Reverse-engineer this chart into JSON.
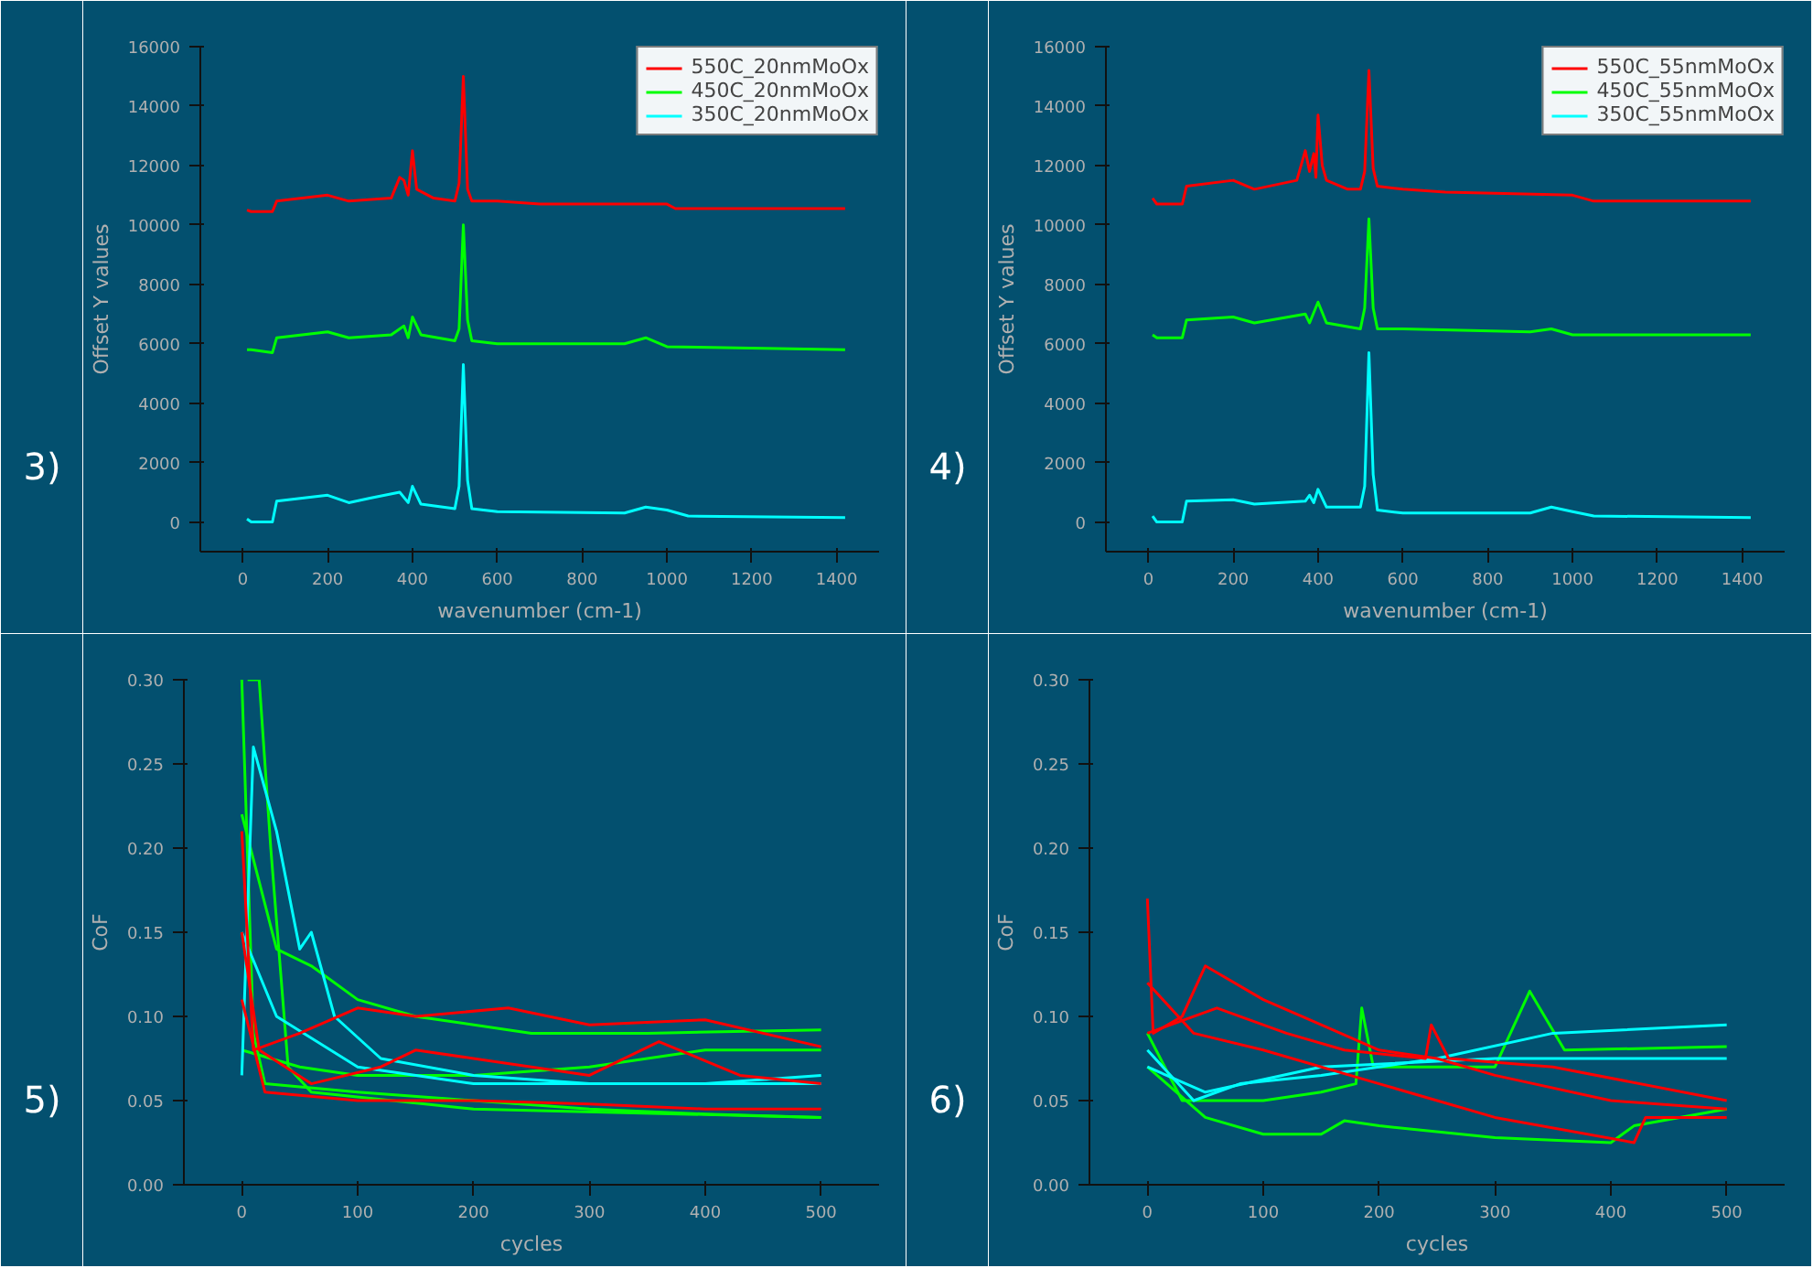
{
  "chart_data": [
    {
      "type": "line",
      "xlabel": "wavenumber (cm-1)",
      "ylabel": "Offset Y values",
      "annotations": [
        "3)"
      ],
      "xlim": [
        -100,
        1500
      ],
      "ylim": [
        -1000,
        16000
      ],
      "xticks": [
        0,
        200,
        400,
        600,
        800,
        1000,
        1200,
        1400
      ],
      "yticks": [
        0,
        2000,
        4000,
        6000,
        8000,
        10000,
        12000,
        14000,
        16000
      ],
      "grid": false,
      "legend": "top right",
      "series": [
        {
          "name": "550C_20nmMoOx",
          "color": "#ff0000",
          "x": [
            10,
            20,
            70,
            80,
            200,
            250,
            350,
            370,
            380,
            390,
            400,
            410,
            450,
            500,
            510,
            520,
            530,
            540,
            600,
            700,
            900,
            1000,
            1020,
            1420
          ],
          "values": [
            10500,
            10450,
            10450,
            10800,
            11000,
            10800,
            10900,
            11600,
            11500,
            11000,
            12500,
            11200,
            10900,
            10800,
            11400,
            15000,
            11200,
            10800,
            10800,
            10700,
            10700,
            10700,
            10550,
            10550
          ]
        },
        {
          "name": "450C_20nmMoOx",
          "color": "#00ff00",
          "x": [
            10,
            20,
            70,
            80,
            200,
            250,
            350,
            380,
            390,
            400,
            420,
            500,
            510,
            520,
            530,
            540,
            600,
            900,
            950,
            1000,
            1420
          ],
          "values": [
            5800,
            5800,
            5700,
            6200,
            6400,
            6200,
            6300,
            6600,
            6200,
            6900,
            6300,
            6100,
            6500,
            10000,
            6800,
            6100,
            6000,
            6000,
            6200,
            5900,
            5800
          ]
        },
        {
          "name": "350C_20nmMoOx",
          "color": "#00ffff",
          "x": [
            10,
            20,
            70,
            80,
            200,
            250,
            300,
            370,
            390,
            400,
            420,
            500,
            510,
            520,
            530,
            540,
            600,
            900,
            950,
            1000,
            1050,
            1420
          ],
          "values": [
            100,
            0,
            0,
            700,
            900,
            650,
            800,
            1000,
            650,
            1200,
            600,
            450,
            1200,
            5300,
            1400,
            450,
            350,
            300,
            500,
            400,
            200,
            150
          ]
        }
      ]
    },
    {
      "type": "line",
      "xlabel": "wavenumber (cm-1)",
      "ylabel": "Offset Y values",
      "annotations": [
        "4)"
      ],
      "xlim": [
        -100,
        1500
      ],
      "ylim": [
        -1000,
        16000
      ],
      "xticks": [
        0,
        200,
        400,
        600,
        800,
        1000,
        1200,
        1400
      ],
      "yticks": [
        0,
        2000,
        4000,
        6000,
        8000,
        10000,
        12000,
        14000,
        16000
      ],
      "grid": false,
      "legend": "top right",
      "series": [
        {
          "name": "550C_55nmMoOx",
          "color": "#ff0000",
          "x": [
            10,
            20,
            80,
            90,
            200,
            250,
            350,
            370,
            380,
            390,
            395,
            400,
            410,
            420,
            470,
            500,
            510,
            520,
            530,
            540,
            600,
            700,
            1000,
            1050,
            1420
          ],
          "values": [
            10900,
            10700,
            10700,
            11300,
            11500,
            11200,
            11500,
            12500,
            11800,
            12400,
            11600,
            13700,
            12000,
            11500,
            11200,
            11200,
            11800,
            15200,
            11900,
            11300,
            11200,
            11100,
            11000,
            10800,
            10800
          ]
        },
        {
          "name": "450C_55nmMoOx",
          "color": "#00ff00",
          "x": [
            10,
            20,
            80,
            90,
            200,
            250,
            370,
            380,
            400,
            420,
            500,
            510,
            520,
            530,
            540,
            600,
            900,
            950,
            1000,
            1420
          ],
          "values": [
            6300,
            6200,
            6200,
            6800,
            6900,
            6700,
            7000,
            6700,
            7400,
            6700,
            6500,
            7200,
            10200,
            7200,
            6500,
            6500,
            6400,
            6500,
            6300,
            6300
          ]
        },
        {
          "name": "350C_55nmMoOx",
          "color": "#00ffff",
          "x": [
            10,
            20,
            80,
            90,
            200,
            250,
            370,
            380,
            390,
            400,
            420,
            500,
            510,
            520,
            530,
            540,
            600,
            900,
            950,
            1000,
            1050,
            1420
          ],
          "values": [
            200,
            0,
            0,
            700,
            750,
            600,
            700,
            900,
            650,
            1100,
            500,
            500,
            1200,
            5700,
            1600,
            400,
            300,
            300,
            500,
            350,
            200,
            150
          ]
        }
      ]
    },
    {
      "type": "line",
      "xlabel": "cycles",
      "ylabel": "CoF",
      "annotations": [
        "5)"
      ],
      "xlim": [
        -50,
        550
      ],
      "ylim": [
        0,
        0.3
      ],
      "xticks": [
        0,
        100,
        200,
        300,
        400,
        500
      ],
      "yticks": [
        {
          "value": 0,
          "label": "0.00"
        },
        {
          "value": 0.05,
          "label": "0.05"
        },
        {
          "value": 0.1,
          "label": "0.10"
        },
        {
          "value": 0.15,
          "label": "0.15"
        },
        {
          "value": 0.2,
          "label": "0.20"
        },
        {
          "value": 0.25,
          "label": "0.25"
        },
        {
          "value": 0.3,
          "label": "0.30"
        }
      ],
      "grid": false,
      "series": [
        {
          "color": "#00ff00",
          "x": [
            0,
            10,
            20,
            100,
            200,
            300,
            400,
            500
          ],
          "values": [
            0.3,
            0.09,
            0.06,
            0.055,
            0.05,
            0.045,
            0.042,
            0.04
          ]
        },
        {
          "color": "#00ff00",
          "x": [
            5,
            15,
            25,
            40,
            60,
            200,
            500
          ],
          "values": [
            0.3,
            0.3,
            0.2,
            0.07,
            0.055,
            0.045,
            0.04
          ]
        },
        {
          "color": "#00ff00",
          "x": [
            0,
            30,
            60,
            100,
            150,
            250,
            350,
            500
          ],
          "values": [
            0.22,
            0.14,
            0.13,
            0.11,
            0.1,
            0.09,
            0.09,
            0.092
          ]
        },
        {
          "color": "#00ff00",
          "x": [
            0,
            50,
            100,
            200,
            300,
            400,
            500
          ],
          "values": [
            0.08,
            0.07,
            0.065,
            0.065,
            0.07,
            0.08,
            0.08
          ]
        },
        {
          "color": "#00ffff",
          "x": [
            0,
            10,
            30,
            50,
            60,
            80,
            120,
            200,
            300,
            400,
            500
          ],
          "values": [
            0.065,
            0.26,
            0.21,
            0.14,
            0.15,
            0.1,
            0.075,
            0.065,
            0.06,
            0.06,
            0.065
          ]
        },
        {
          "color": "#00ffff",
          "x": [
            0,
            30,
            100,
            200,
            300,
            500
          ],
          "values": [
            0.15,
            0.1,
            0.07,
            0.06,
            0.06,
            0.06
          ]
        },
        {
          "color": "#ff0000",
          "x": [
            0,
            10,
            50,
            100,
            150,
            230,
            300,
            400,
            500
          ],
          "values": [
            0.21,
            0.08,
            0.09,
            0.105,
            0.1,
            0.105,
            0.095,
            0.098,
            0.082
          ]
        },
        {
          "color": "#ff0000",
          "x": [
            0,
            15,
            60,
            120,
            150,
            200,
            300,
            360,
            430,
            500
          ],
          "values": [
            0.15,
            0.08,
            0.06,
            0.07,
            0.08,
            0.075,
            0.065,
            0.085,
            0.065,
            0.06
          ]
        },
        {
          "color": "#ff0000",
          "x": [
            0,
            20,
            100,
            200,
            300,
            400,
            500
          ],
          "values": [
            0.11,
            0.055,
            0.05,
            0.05,
            0.048,
            0.045,
            0.045
          ]
        }
      ]
    },
    {
      "type": "line",
      "xlabel": "cycles",
      "ylabel": "CoF",
      "annotations": [
        "6)"
      ],
      "xlim": [
        -50,
        550
      ],
      "ylim": [
        0,
        0.3
      ],
      "xticks": [
        0,
        100,
        200,
        300,
        400,
        500
      ],
      "yticks": [
        {
          "value": 0,
          "label": "0.00"
        },
        {
          "value": 0.05,
          "label": "0.05"
        },
        {
          "value": 0.1,
          "label": "0.10"
        },
        {
          "value": 0.15,
          "label": "0.15"
        },
        {
          "value": 0.2,
          "label": "0.20"
        },
        {
          "value": 0.25,
          "label": "0.25"
        },
        {
          "value": 0.3,
          "label": "0.30"
        }
      ],
      "grid": false,
      "series": [
        {
          "color": "#00ff00",
          "x": [
            0,
            50,
            100,
            150,
            170,
            200,
            300,
            400,
            420,
            500
          ],
          "values": [
            0.07,
            0.04,
            0.03,
            0.03,
            0.038,
            0.035,
            0.028,
            0.025,
            0.035,
            0.045
          ]
        },
        {
          "color": "#00ff00",
          "x": [
            0,
            30,
            100,
            150,
            180,
            185,
            195,
            300,
            330,
            360,
            500
          ],
          "values": [
            0.09,
            0.05,
            0.05,
            0.055,
            0.06,
            0.105,
            0.07,
            0.07,
            0.115,
            0.08,
            0.082
          ]
        },
        {
          "color": "#00ffff",
          "x": [
            0,
            40,
            80,
            150,
            250,
            350,
            500
          ],
          "values": [
            0.08,
            0.05,
            0.06,
            0.065,
            0.075,
            0.09,
            0.095
          ]
        },
        {
          "color": "#00ffff",
          "x": [
            0,
            50,
            150,
            300,
            500
          ],
          "values": [
            0.07,
            0.055,
            0.07,
            0.075,
            0.075
          ]
        },
        {
          "color": "#ff0000",
          "x": [
            0,
            5,
            30,
            50,
            100,
            150,
            200,
            250,
            300,
            400,
            500
          ],
          "values": [
            0.17,
            0.09,
            0.1,
            0.13,
            0.11,
            0.095,
            0.08,
            0.075,
            0.065,
            0.05,
            0.045
          ]
        },
        {
          "color": "#ff0000",
          "x": [
            0,
            40,
            100,
            200,
            250,
            300,
            420,
            430,
            500
          ],
          "values": [
            0.12,
            0.09,
            0.08,
            0.06,
            0.05,
            0.04,
            0.025,
            0.04,
            0.04
          ]
        },
        {
          "color": "#ff0000",
          "x": [
            0,
            60,
            120,
            170,
            240,
            245,
            260,
            350,
            500
          ],
          "values": [
            0.09,
            0.105,
            0.09,
            0.08,
            0.075,
            0.095,
            0.075,
            0.07,
            0.05
          ]
        }
      ]
    }
  ]
}
